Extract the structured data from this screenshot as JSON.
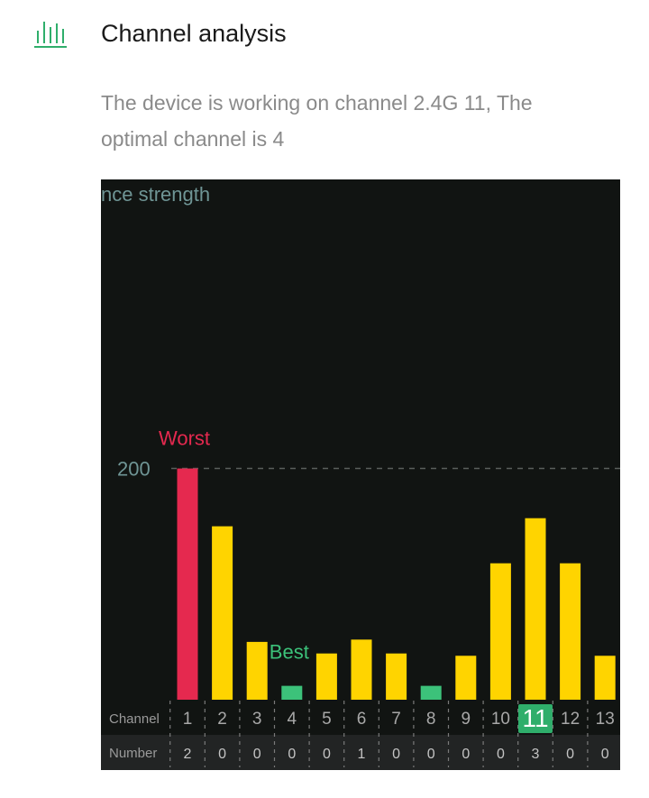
{
  "header": {
    "icon": "signal-bars-icon",
    "title": "Channel analysis",
    "accent": "#2fae6b"
  },
  "description": "The device is working on channel 2.4G 11, The optimal channel is 4",
  "chart_data": {
    "type": "bar",
    "ylabel_visible": "nce strength",
    "gridline_label": "200",
    "ylim": [
      0,
      450
    ],
    "categories": [
      "1",
      "2",
      "3",
      "4",
      "5",
      "6",
      "7",
      "8",
      "9",
      "10",
      "11",
      "12",
      "13"
    ],
    "values": [
      200,
      150,
      50,
      12,
      40,
      52,
      40,
      12,
      38,
      118,
      157,
      118,
      38
    ],
    "numbers": [
      "2",
      "0",
      "0",
      "0",
      "0",
      "1",
      "0",
      "0",
      "0",
      "0",
      "3",
      "0",
      "0"
    ],
    "row_labels": {
      "channel": "Channel",
      "number": "Number"
    },
    "annotations": {
      "worst": "Worst",
      "best": "Best"
    },
    "worst_index": 0,
    "best_indices": [
      3,
      7
    ],
    "current_index": 10,
    "colors": {
      "default": "#ffd400",
      "worst": "#e5294f",
      "best": "#3cc27a",
      "background": "#111412",
      "axis_text": "#6f9595",
      "row_text": "#9a9a9a",
      "number_row_bg": "#222424",
      "current_highlight": "#2fae6b"
    }
  }
}
